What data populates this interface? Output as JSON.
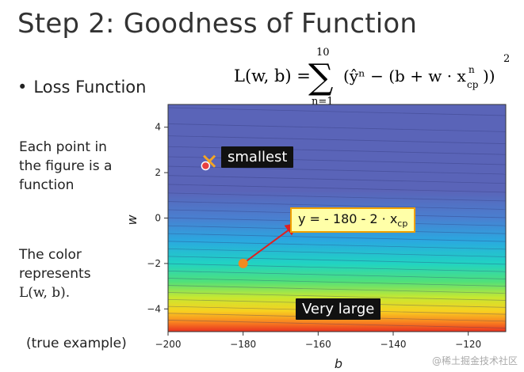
{
  "slide": {
    "title": "Step 2: Goodness of Function",
    "bullet": "Loss Function",
    "formula": {
      "lhs": "L(w, b) =",
      "sum_upper": "10",
      "sum_lower": "n=1",
      "body": "(ŷⁿ − (b + w · x",
      "sub": "cp",
      "sup": "n",
      "close": "))",
      "power": "2"
    },
    "left_text_1": [
      "Each point in",
      "the figure is a",
      "function"
    ],
    "left_text_2": [
      "The color",
      "represents"
    ],
    "left_text_2_math": "L(w, b).",
    "footnote": "(true example)",
    "watermark": "@稀土掘金技术社区"
  },
  "labels": {
    "smallest": "smallest",
    "very_large": "Very large",
    "equation_prefix": "y = - 180 - 2 · x",
    "equation_sub": "cp"
  },
  "chart_data": {
    "type": "heatmap",
    "xlabel": "b",
    "ylabel": "w",
    "xlim": [
      -200,
      -110
    ],
    "ylim": [
      -5,
      5
    ],
    "x_ticks": [
      -200,
      -180,
      -160,
      -140,
      -120
    ],
    "y_ticks": [
      -4,
      -2,
      0,
      2,
      4
    ],
    "colormap": [
      "#5a64b8",
      "#5a64b8",
      "#4a7fd0",
      "#2aa8e0",
      "#21d3c3",
      "#50e07a",
      "#c8e830",
      "#f8d020",
      "#f88020",
      "#e83020"
    ],
    "points": [
      {
        "name": "smallest",
        "b": -189,
        "w": 2.5,
        "marker": "x",
        "color": "#f5a623"
      },
      {
        "name": "smallest-dot",
        "b": -190,
        "w": 2.3,
        "marker": "o",
        "color": "#e84040"
      },
      {
        "name": "example",
        "b": -180,
        "w": -2,
        "marker": "o",
        "color": "#f08a20"
      }
    ],
    "arrow": {
      "from": {
        "b": -180,
        "w": -2
      },
      "to": {
        "b": -166,
        "w": -0.3
      },
      "color": "#e02020"
    }
  },
  "colors": {
    "arrow": "#e02020",
    "label_bg": "#111111",
    "equation_bg": "#ffffa8",
    "equation_border": "#f0a000"
  }
}
